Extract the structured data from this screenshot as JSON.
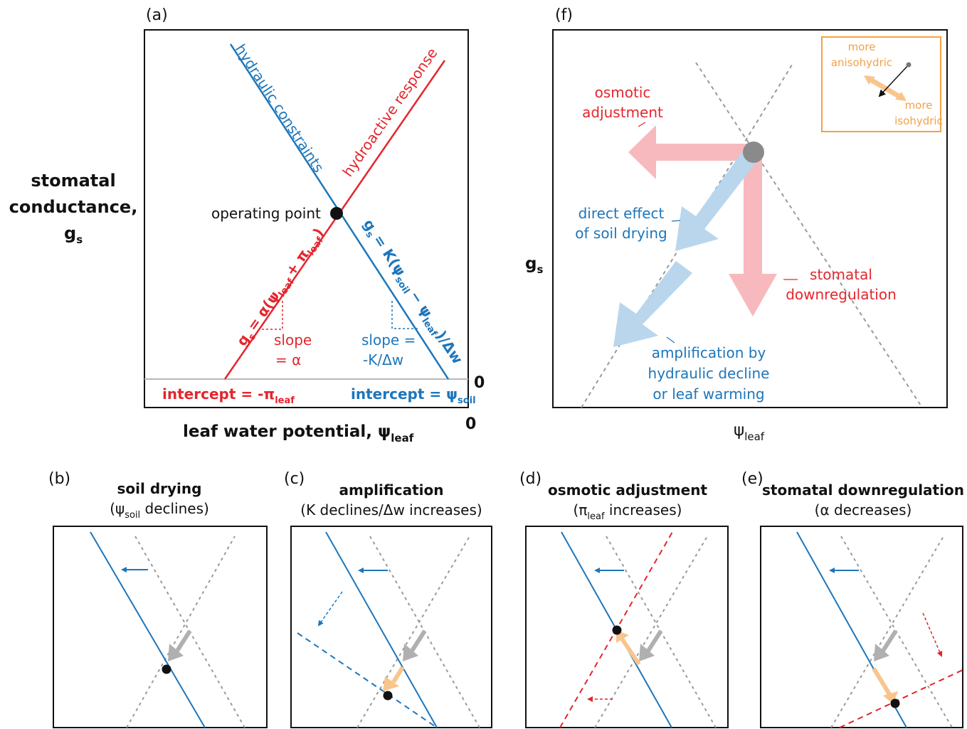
{
  "colors": {
    "red": "#e3262d",
    "blue": "#1d76bb",
    "orange": "#f3a245",
    "gray": "#9a9a9a",
    "pale_red": "#f7b9bd",
    "pale_blue": "#b9d6ec",
    "pale_orange": "#f8c58c"
  },
  "panel_a": {
    "tag": "(a)",
    "y_axis": [
      "stomatal",
      "conductance,",
      "g",
      "s"
    ],
    "x_axis": "leaf water potential, ψ",
    "x_axis_sub": "leaf",
    "zero_x": "0",
    "zero_y": "0",
    "line_blue_label": "hydraulic constraints",
    "line_red_label": "hydroactive response",
    "operating_point": "operating point",
    "eq_red": "g",
    "eq_red_rest": "= α(ψ",
    "eq_red_sub1": "s",
    "eq_red_sub2": "leaf",
    "eq_red_mid": "+ π",
    "eq_red_sub3": "leaf",
    "eq_red_end": ")",
    "eq_blue": "g",
    "eq_blue_sub1": "s",
    "eq_blue_rest": "= K(ψ",
    "eq_blue_sub2": "soil",
    "eq_blue_mid": "− ψ",
    "eq_blue_sub3": "leaf",
    "eq_blue_end": ")/Δw",
    "slope_red_1": "slope",
    "slope_red_2": "= α",
    "slope_blue_1": "slope =",
    "slope_blue_2": "-K/Δw",
    "intercept_red": "intercept = -π",
    "intercept_red_sub": "leaf",
    "intercept_blue": "intercept = ψ",
    "intercept_blue_sub": "soil"
  },
  "panel_f": {
    "tag": "(f)",
    "y_axis": "g",
    "y_axis_sub": "s",
    "x_axis": "ψ",
    "x_axis_sub": "leaf",
    "inset_more_aniso_1": "more",
    "inset_more_aniso_2": "anisohydric",
    "inset_more_iso_1": "more",
    "inset_more_iso_2": "isohydric",
    "osmotic_1": "osmotic",
    "osmotic_2": "adjustment",
    "direct_1": "direct effect",
    "direct_2": "of soil drying",
    "stomatal_1": "stomatal",
    "stomatal_2": "downregulation",
    "amp_1": "amplification by",
    "amp_2": "hydraulic decline",
    "amp_3": "or leaf warming"
  },
  "panel_b": {
    "tag": "(b)",
    "title": "soil drying",
    "sub_pre": "(ψ",
    "sub_sub": "soil",
    "sub_post": " declines)"
  },
  "panel_c": {
    "tag": "(c)",
    "title": "amplification",
    "sub": "(K declines/Δw increases)"
  },
  "panel_d": {
    "tag": "(d)",
    "title": "osmotic adjustment",
    "sub_pre": "(π",
    "sub_sub": "leaf",
    "sub_post": " increases)"
  },
  "panel_e": {
    "tag": "(e)",
    "title": "stomatal downregulation",
    "sub": "(α decreases)"
  }
}
